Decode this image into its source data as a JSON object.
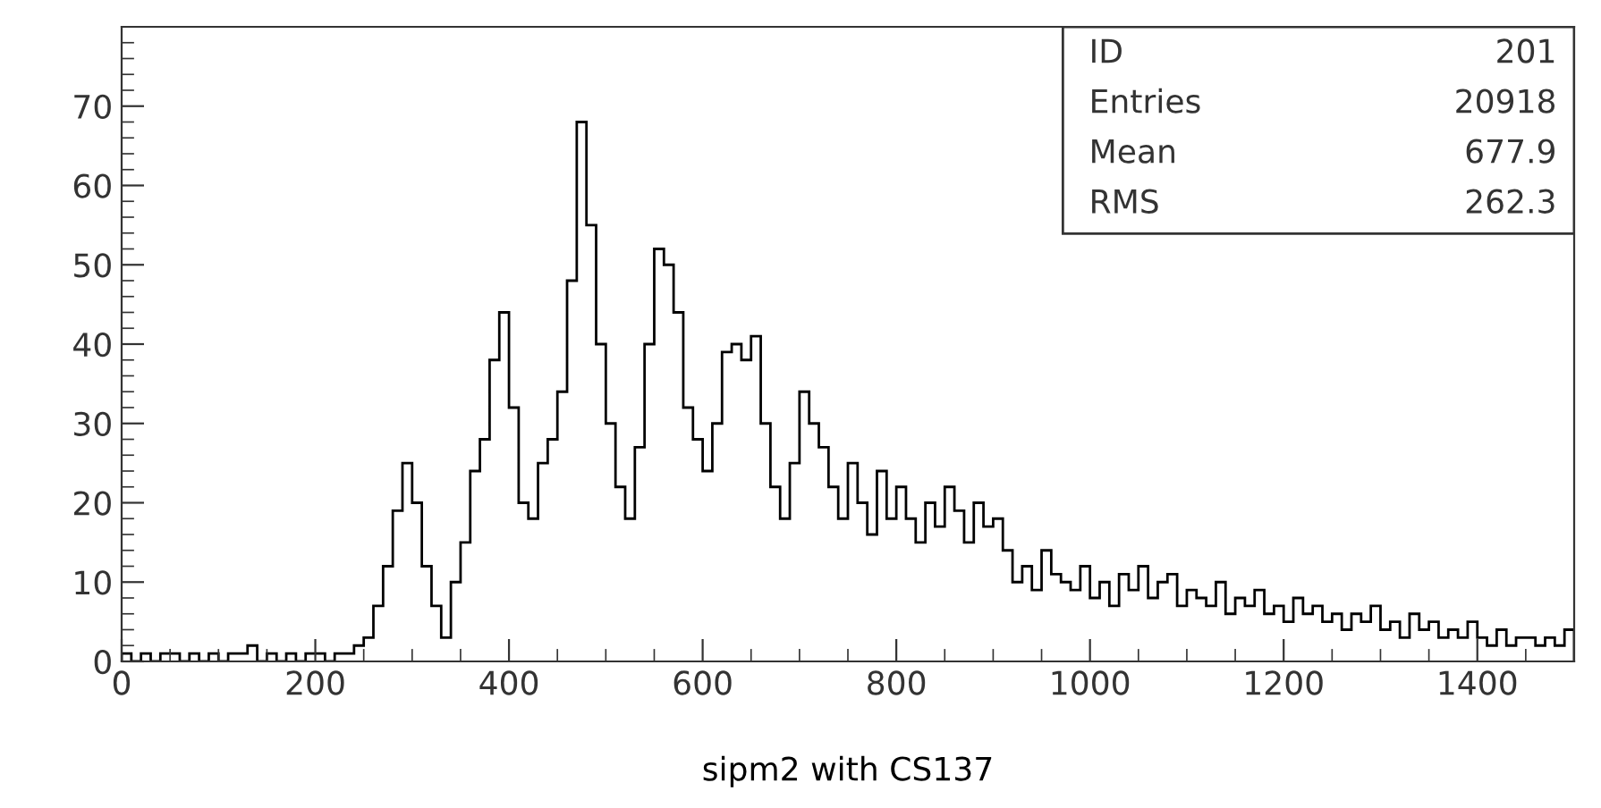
{
  "chart_data": {
    "type": "histogram",
    "xlabel": "sipm2 with CS137",
    "bins": [
      0,
      10,
      20,
      30,
      40,
      50,
      60,
      70,
      80,
      90,
      100,
      110,
      120,
      130,
      140,
      150,
      160,
      170,
      180,
      190,
      200,
      210,
      220,
      230,
      240,
      250,
      260,
      270,
      280,
      290,
      300,
      310,
      320,
      330,
      340,
      350,
      360,
      370,
      380,
      390,
      400,
      410,
      420,
      430,
      440,
      450,
      460,
      470,
      480,
      490,
      500,
      510,
      520,
      530,
      540,
      550,
      560,
      570,
      580,
      590,
      600,
      610,
      620,
      630,
      640,
      650,
      660,
      670,
      680,
      690,
      700,
      710,
      720,
      730,
      740,
      750,
      760,
      770,
      780,
      790,
      800,
      810,
      820,
      830,
      840,
      850,
      860,
      870,
      880,
      890,
      900,
      910,
      920,
      930,
      940,
      950,
      960,
      970,
      980,
      990,
      1000,
      1010,
      1020,
      1030,
      1040,
      1050,
      1060,
      1070,
      1080,
      1090,
      1100,
      1110,
      1120,
      1130,
      1140,
      1150,
      1160,
      1170,
      1180,
      1190,
      1200,
      1210,
      1220,
      1230,
      1240,
      1250,
      1260,
      1270,
      1280,
      1290,
      1300,
      1310,
      1320,
      1330,
      1340,
      1350,
      1360,
      1370,
      1380,
      1390,
      1400,
      1410,
      1420,
      1430,
      1440,
      1450,
      1460,
      1470,
      1480,
      1490,
      1500
    ],
    "values": [
      1,
      0,
      1,
      0,
      1,
      1,
      0,
      1,
      0,
      1,
      0,
      1,
      1,
      2,
      0,
      1,
      0,
      1,
      0,
      1,
      1,
      0,
      1,
      1,
      2,
      3,
      7,
      12,
      19,
      25,
      20,
      12,
      7,
      3,
      10,
      15,
      24,
      28,
      38,
      44,
      32,
      20,
      18,
      25,
      28,
      34,
      48,
      68,
      55,
      40,
      30,
      22,
      18,
      27,
      40,
      52,
      50,
      44,
      32,
      28,
      24,
      30,
      39,
      40,
      38,
      41,
      30,
      22,
      18,
      25,
      34,
      30,
      27,
      22,
      18,
      25,
      20,
      16,
      24,
      18,
      22,
      18,
      15,
      20,
      17,
      22,
      19,
      15,
      20,
      17,
      18,
      14,
      10,
      12,
      9,
      14,
      11,
      10,
      9,
      12,
      8,
      10,
      7,
      11,
      9,
      12,
      8,
      10,
      11,
      7,
      9,
      8,
      7,
      10,
      6,
      8,
      7,
      9,
      6,
      7,
      5,
      8,
      6,
      7,
      5,
      6,
      4,
      6,
      5,
      7,
      4,
      5,
      3,
      6,
      4,
      5,
      3,
      4,
      3,
      5,
      3,
      2,
      4,
      2,
      3,
      3,
      2,
      3,
      2,
      4
    ],
    "color": "#000000",
    "xlim": [
      0,
      1500
    ],
    "ylim": [
      0,
      80
    ],
    "xticks": [
      0,
      200,
      400,
      600,
      800,
      1000,
      1200,
      1400
    ],
    "yticks": [
      0,
      10,
      20,
      30,
      40,
      50,
      60,
      70
    ],
    "annotations": [
      "ID",
      "201",
      "Entries",
      "20918",
      "Mean",
      "677.9",
      "RMS",
      "262.3"
    ]
  }
}
